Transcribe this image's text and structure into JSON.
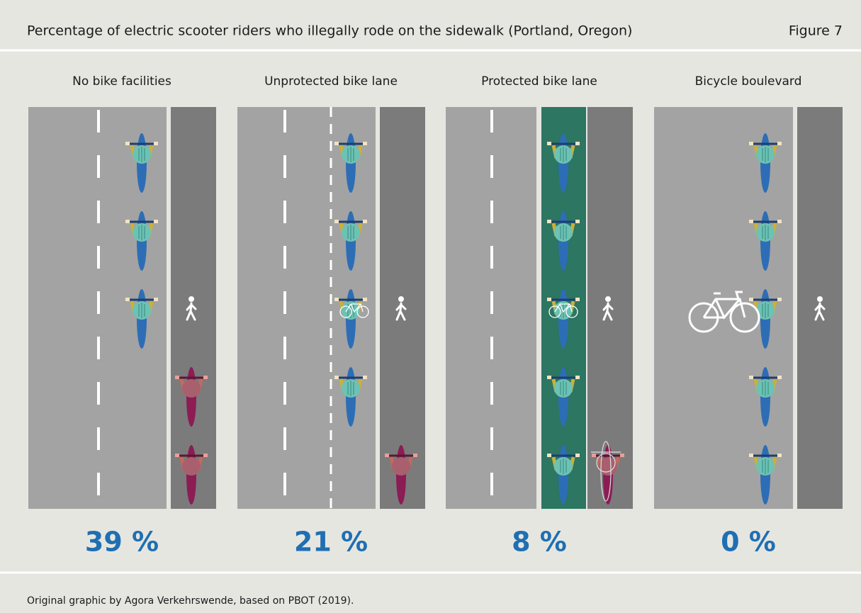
{
  "header": {
    "title": "Percentage of electric scooter riders who illegally rode on the sidewalk (Portland, Oregon)",
    "figure": "Figure 7"
  },
  "panels": [
    {
      "label": "No bike facilities",
      "percent": "39 %"
    },
    {
      "label": "Unprotected bike lane",
      "percent": "21 %"
    },
    {
      "label": "Protected bike lane",
      "percent": "8 %"
    },
    {
      "label": "Bicycle boulevard",
      "percent": "0 %"
    }
  ],
  "footer": {
    "source": "Original graphic by Agora Verkehrswende, based on PBOT (2019)."
  }
}
